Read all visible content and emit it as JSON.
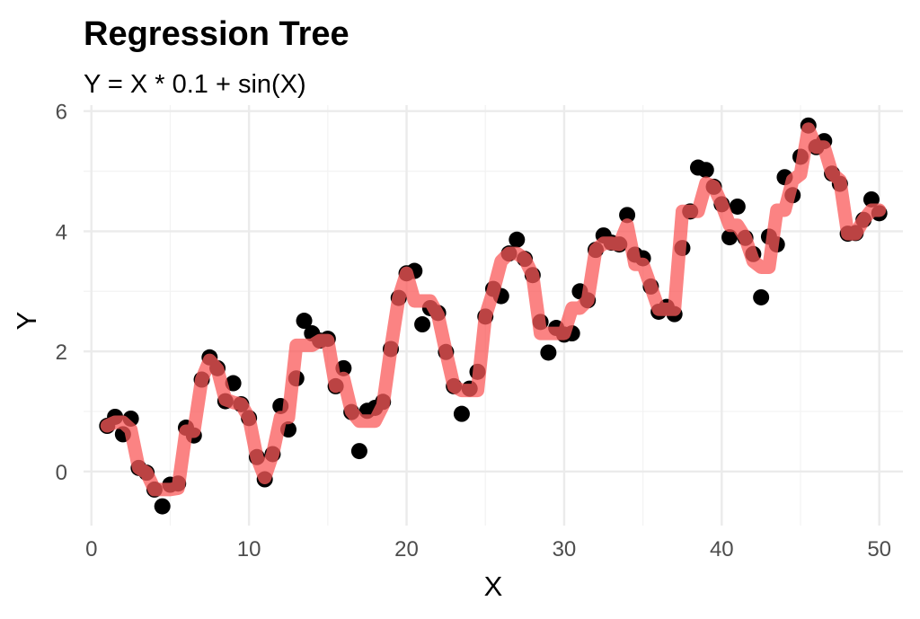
{
  "chart_data": {
    "type": "scatter",
    "title": "Regression Tree",
    "subtitle": "Y = X * 0.1 + sin(X)",
    "xlabel": "X",
    "ylabel": "Y",
    "xlim": [
      -0.5,
      51.5
    ],
    "ylim": [
      -0.9,
      6.1
    ],
    "x_ticks": [
      0,
      10,
      20,
      30,
      40,
      50
    ],
    "y_ticks": [
      0,
      2,
      4,
      6
    ],
    "grid": true,
    "colors": {
      "points": "#000000",
      "fit_line": "#fa5a5a",
      "grid": "#ebebeb"
    },
    "points": [
      [
        1.0,
        0.76
      ],
      [
        1.5,
        0.91
      ],
      [
        2.0,
        0.62
      ],
      [
        2.5,
        0.88
      ],
      [
        3.0,
        0.06
      ],
      [
        3.5,
        -0.02
      ],
      [
        4.0,
        -0.3
      ],
      [
        4.5,
        -0.58
      ],
      [
        5.0,
        -0.22
      ],
      [
        5.5,
        -0.2
      ],
      [
        6.0,
        0.73
      ],
      [
        6.5,
        0.6
      ],
      [
        7.0,
        1.53
      ],
      [
        7.5,
        1.9
      ],
      [
        8.0,
        1.72
      ],
      [
        8.5,
        1.17
      ],
      [
        9.0,
        1.47
      ],
      [
        9.5,
        1.12
      ],
      [
        10.0,
        0.89
      ],
      [
        10.5,
        0.24
      ],
      [
        11.0,
        -0.13
      ],
      [
        11.5,
        0.29
      ],
      [
        12.0,
        1.09
      ],
      [
        12.5,
        0.7
      ],
      [
        13.0,
        1.55
      ],
      [
        13.5,
        2.51
      ],
      [
        14.0,
        2.3
      ],
      [
        14.5,
        2.18
      ],
      [
        15.0,
        2.21
      ],
      [
        15.5,
        1.42
      ],
      [
        16.0,
        1.72
      ],
      [
        16.5,
        0.99
      ],
      [
        17.0,
        0.34
      ],
      [
        17.5,
        1.01
      ],
      [
        18.0,
        1.06
      ],
      [
        18.5,
        1.16
      ],
      [
        19.0,
        2.04
      ],
      [
        19.5,
        2.89
      ],
      [
        20.0,
        3.3
      ],
      [
        20.5,
        3.34
      ],
      [
        21.0,
        2.45
      ],
      [
        21.5,
        2.72
      ],
      [
        22.0,
        2.64
      ],
      [
        22.5,
        1.99
      ],
      [
        23.0,
        1.42
      ],
      [
        23.5,
        0.96
      ],
      [
        24.0,
        1.38
      ],
      [
        24.5,
        1.66
      ],
      [
        25.0,
        2.58
      ],
      [
        25.5,
        3.04
      ],
      [
        26.0,
        2.92
      ],
      [
        26.5,
        3.63
      ],
      [
        27.0,
        3.86
      ],
      [
        27.5,
        3.54
      ],
      [
        28.0,
        3.27
      ],
      [
        28.5,
        2.49
      ],
      [
        29.0,
        1.98
      ],
      [
        29.5,
        2.39
      ],
      [
        30.0,
        2.28
      ],
      [
        30.5,
        2.3
      ],
      [
        31.0,
        3.0
      ],
      [
        31.5,
        2.85
      ],
      [
        32.0,
        3.69
      ],
      [
        32.5,
        3.93
      ],
      [
        33.0,
        3.81
      ],
      [
        33.5,
        3.78
      ],
      [
        34.0,
        4.27
      ],
      [
        34.5,
        3.61
      ],
      [
        35.0,
        3.55
      ],
      [
        35.5,
        3.08
      ],
      [
        36.0,
        2.66
      ],
      [
        36.5,
        2.74
      ],
      [
        37.0,
        2.62
      ],
      [
        37.5,
        3.72
      ],
      [
        38.0,
        4.33
      ],
      [
        38.5,
        5.06
      ],
      [
        39.0,
        5.02
      ],
      [
        39.5,
        4.74
      ],
      [
        40.0,
        4.45
      ],
      [
        40.5,
        3.9
      ],
      [
        41.0,
        4.41
      ],
      [
        41.5,
        3.89
      ],
      [
        42.0,
        3.62
      ],
      [
        42.5,
        2.9
      ],
      [
        43.0,
        3.91
      ],
      [
        43.5,
        3.78
      ],
      [
        44.0,
        4.9
      ],
      [
        44.5,
        4.6
      ],
      [
        45.0,
        5.24
      ],
      [
        45.5,
        5.76
      ],
      [
        46.0,
        5.4
      ],
      [
        46.5,
        5.5
      ],
      [
        47.0,
        4.96
      ],
      [
        47.5,
        4.79
      ],
      [
        48.0,
        3.96
      ],
      [
        48.5,
        3.97
      ],
      [
        49.0,
        4.19
      ],
      [
        49.5,
        4.53
      ],
      [
        50.0,
        4.3
      ]
    ],
    "fit_line": [
      [
        1.0,
        0.76
      ],
      [
        1.5,
        0.82
      ],
      [
        2.0,
        0.82
      ],
      [
        2.5,
        0.7
      ],
      [
        3.0,
        0.06
      ],
      [
        3.5,
        -0.02
      ],
      [
        4.0,
        -0.3
      ],
      [
        4.5,
        -0.3
      ],
      [
        5.0,
        -0.3
      ],
      [
        5.5,
        -0.28
      ],
      [
        6.0,
        0.67
      ],
      [
        6.5,
        0.67
      ],
      [
        7.0,
        1.53
      ],
      [
        7.5,
        1.85
      ],
      [
        8.0,
        1.7
      ],
      [
        8.5,
        1.2
      ],
      [
        9.0,
        1.15
      ],
      [
        9.5,
        1.12
      ],
      [
        10.0,
        0.89
      ],
      [
        10.5,
        0.24
      ],
      [
        11.0,
        -0.1
      ],
      [
        11.5,
        0.29
      ],
      [
        12.0,
        0.9
      ],
      [
        12.5,
        0.9
      ],
      [
        13.0,
        2.1
      ],
      [
        13.5,
        2.1
      ],
      [
        14.0,
        2.1
      ],
      [
        14.5,
        2.18
      ],
      [
        15.0,
        2.18
      ],
      [
        15.5,
        1.42
      ],
      [
        16.0,
        1.55
      ],
      [
        16.5,
        1.0
      ],
      [
        17.0,
        0.84
      ],
      [
        17.5,
        0.84
      ],
      [
        18.0,
        0.84
      ],
      [
        18.5,
        1.1
      ],
      [
        19.0,
        2.04
      ],
      [
        19.5,
        2.89
      ],
      [
        20.0,
        3.3
      ],
      [
        20.5,
        2.84
      ],
      [
        21.0,
        2.84
      ],
      [
        21.5,
        2.84
      ],
      [
        22.0,
        2.6
      ],
      [
        22.5,
        1.99
      ],
      [
        23.0,
        1.42
      ],
      [
        23.5,
        1.35
      ],
      [
        24.0,
        1.35
      ],
      [
        24.5,
        1.35
      ],
      [
        25.0,
        2.58
      ],
      [
        25.5,
        3.0
      ],
      [
        26.0,
        3.5
      ],
      [
        26.5,
        3.63
      ],
      [
        27.0,
        3.63
      ],
      [
        27.5,
        3.54
      ],
      [
        28.0,
        3.27
      ],
      [
        28.5,
        2.3
      ],
      [
        29.0,
        2.3
      ],
      [
        29.5,
        2.3
      ],
      [
        30.0,
        2.3
      ],
      [
        30.5,
        2.72
      ],
      [
        31.0,
        2.72
      ],
      [
        31.5,
        2.85
      ],
      [
        32.0,
        3.69
      ],
      [
        32.5,
        3.8
      ],
      [
        33.0,
        3.8
      ],
      [
        33.5,
        3.78
      ],
      [
        34.0,
        4.1
      ],
      [
        34.5,
        3.45
      ],
      [
        35.0,
        3.45
      ],
      [
        35.5,
        3.08
      ],
      [
        36.0,
        2.7
      ],
      [
        36.5,
        2.7
      ],
      [
        37.0,
        2.7
      ],
      [
        37.5,
        4.33
      ],
      [
        38.0,
        4.33
      ],
      [
        38.5,
        4.33
      ],
      [
        39.0,
        4.8
      ],
      [
        39.5,
        4.74
      ],
      [
        40.0,
        4.45
      ],
      [
        40.5,
        4.1
      ],
      [
        41.0,
        4.1
      ],
      [
        41.5,
        3.89
      ],
      [
        42.0,
        3.5
      ],
      [
        42.5,
        3.4
      ],
      [
        43.0,
        3.4
      ],
      [
        43.5,
        4.35
      ],
      [
        44.0,
        4.35
      ],
      [
        44.5,
        4.85
      ],
      [
        45.0,
        4.95
      ],
      [
        45.5,
        5.7
      ],
      [
        46.0,
        5.4
      ],
      [
        46.5,
        5.4
      ],
      [
        47.0,
        4.96
      ],
      [
        47.5,
        4.85
      ],
      [
        48.0,
        3.96
      ],
      [
        48.5,
        3.96
      ],
      [
        49.0,
        4.19
      ],
      [
        49.5,
        4.35
      ],
      [
        50.0,
        4.35
      ]
    ]
  }
}
